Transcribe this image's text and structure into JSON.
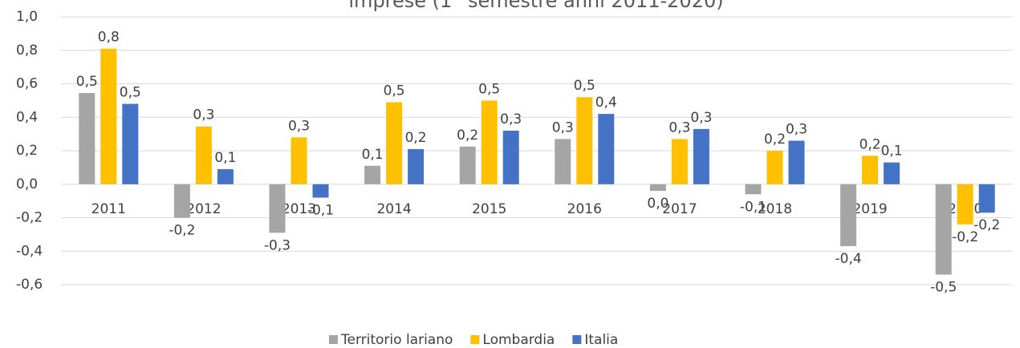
{
  "chart_data": {
    "type": "bar",
    "title": "imprese (1° semestre anni 2011-2020)",
    "categories": [
      "2011",
      "2012",
      "2013",
      "2014",
      "2015",
      "2016",
      "2017",
      "2018",
      "2019",
      "2020"
    ],
    "series": [
      {
        "name": "Territorio lariano",
        "color": "#a5a5a5",
        "values": [
          0.545,
          -0.2,
          -0.29,
          0.11,
          0.225,
          0.27,
          -0.04,
          -0.06,
          -0.37,
          -0.54
        ],
        "value_labels": [
          "0,5",
          "-0,2",
          "-0,3",
          "0,1",
          "0,2",
          "0,3",
          "0,0",
          "-0,1",
          "-0,4",
          "-0,5"
        ]
      },
      {
        "name": "Lombardia",
        "color": "#ffc000",
        "values": [
          0.81,
          0.345,
          0.28,
          0.49,
          0.5,
          0.52,
          0.27,
          0.2,
          0.17,
          -0.24
        ],
        "value_labels": [
          "0,8",
          "0,3",
          "0,3",
          "0,5",
          "0,5",
          "0,5",
          "0,3",
          "0,2",
          "0,2",
          "-0,2"
        ]
      },
      {
        "name": "Italia",
        "color": "#4472c4",
        "values": [
          0.48,
          0.09,
          -0.08,
          0.21,
          0.32,
          0.42,
          0.33,
          0.26,
          0.13,
          -0.17
        ],
        "value_labels": [
          "0,5",
          "0,1",
          "-0,1",
          "0,2",
          "0,3",
          "0,4",
          "0,3",
          "0,3",
          "0,1",
          "-0,2"
        ]
      }
    ],
    "ylim": [
      -0.6,
      1.0
    ],
    "yticks": [
      {
        "value": 1.0,
        "label": "1,0"
      },
      {
        "value": 0.8,
        "label": "0,8"
      },
      {
        "value": 0.6,
        "label": "0,6"
      },
      {
        "value": 0.4,
        "label": "0,4"
      },
      {
        "value": 0.2,
        "label": "0,2"
      },
      {
        "value": 0,
        "label": "0,0"
      },
      {
        "value": -0.2,
        "label": "-0,2"
      },
      {
        "value": -0.4,
        "label": "-0,4"
      },
      {
        "value": -0.6,
        "label": "-0,6"
      }
    ],
    "grid": true,
    "legend": "bottom"
  }
}
